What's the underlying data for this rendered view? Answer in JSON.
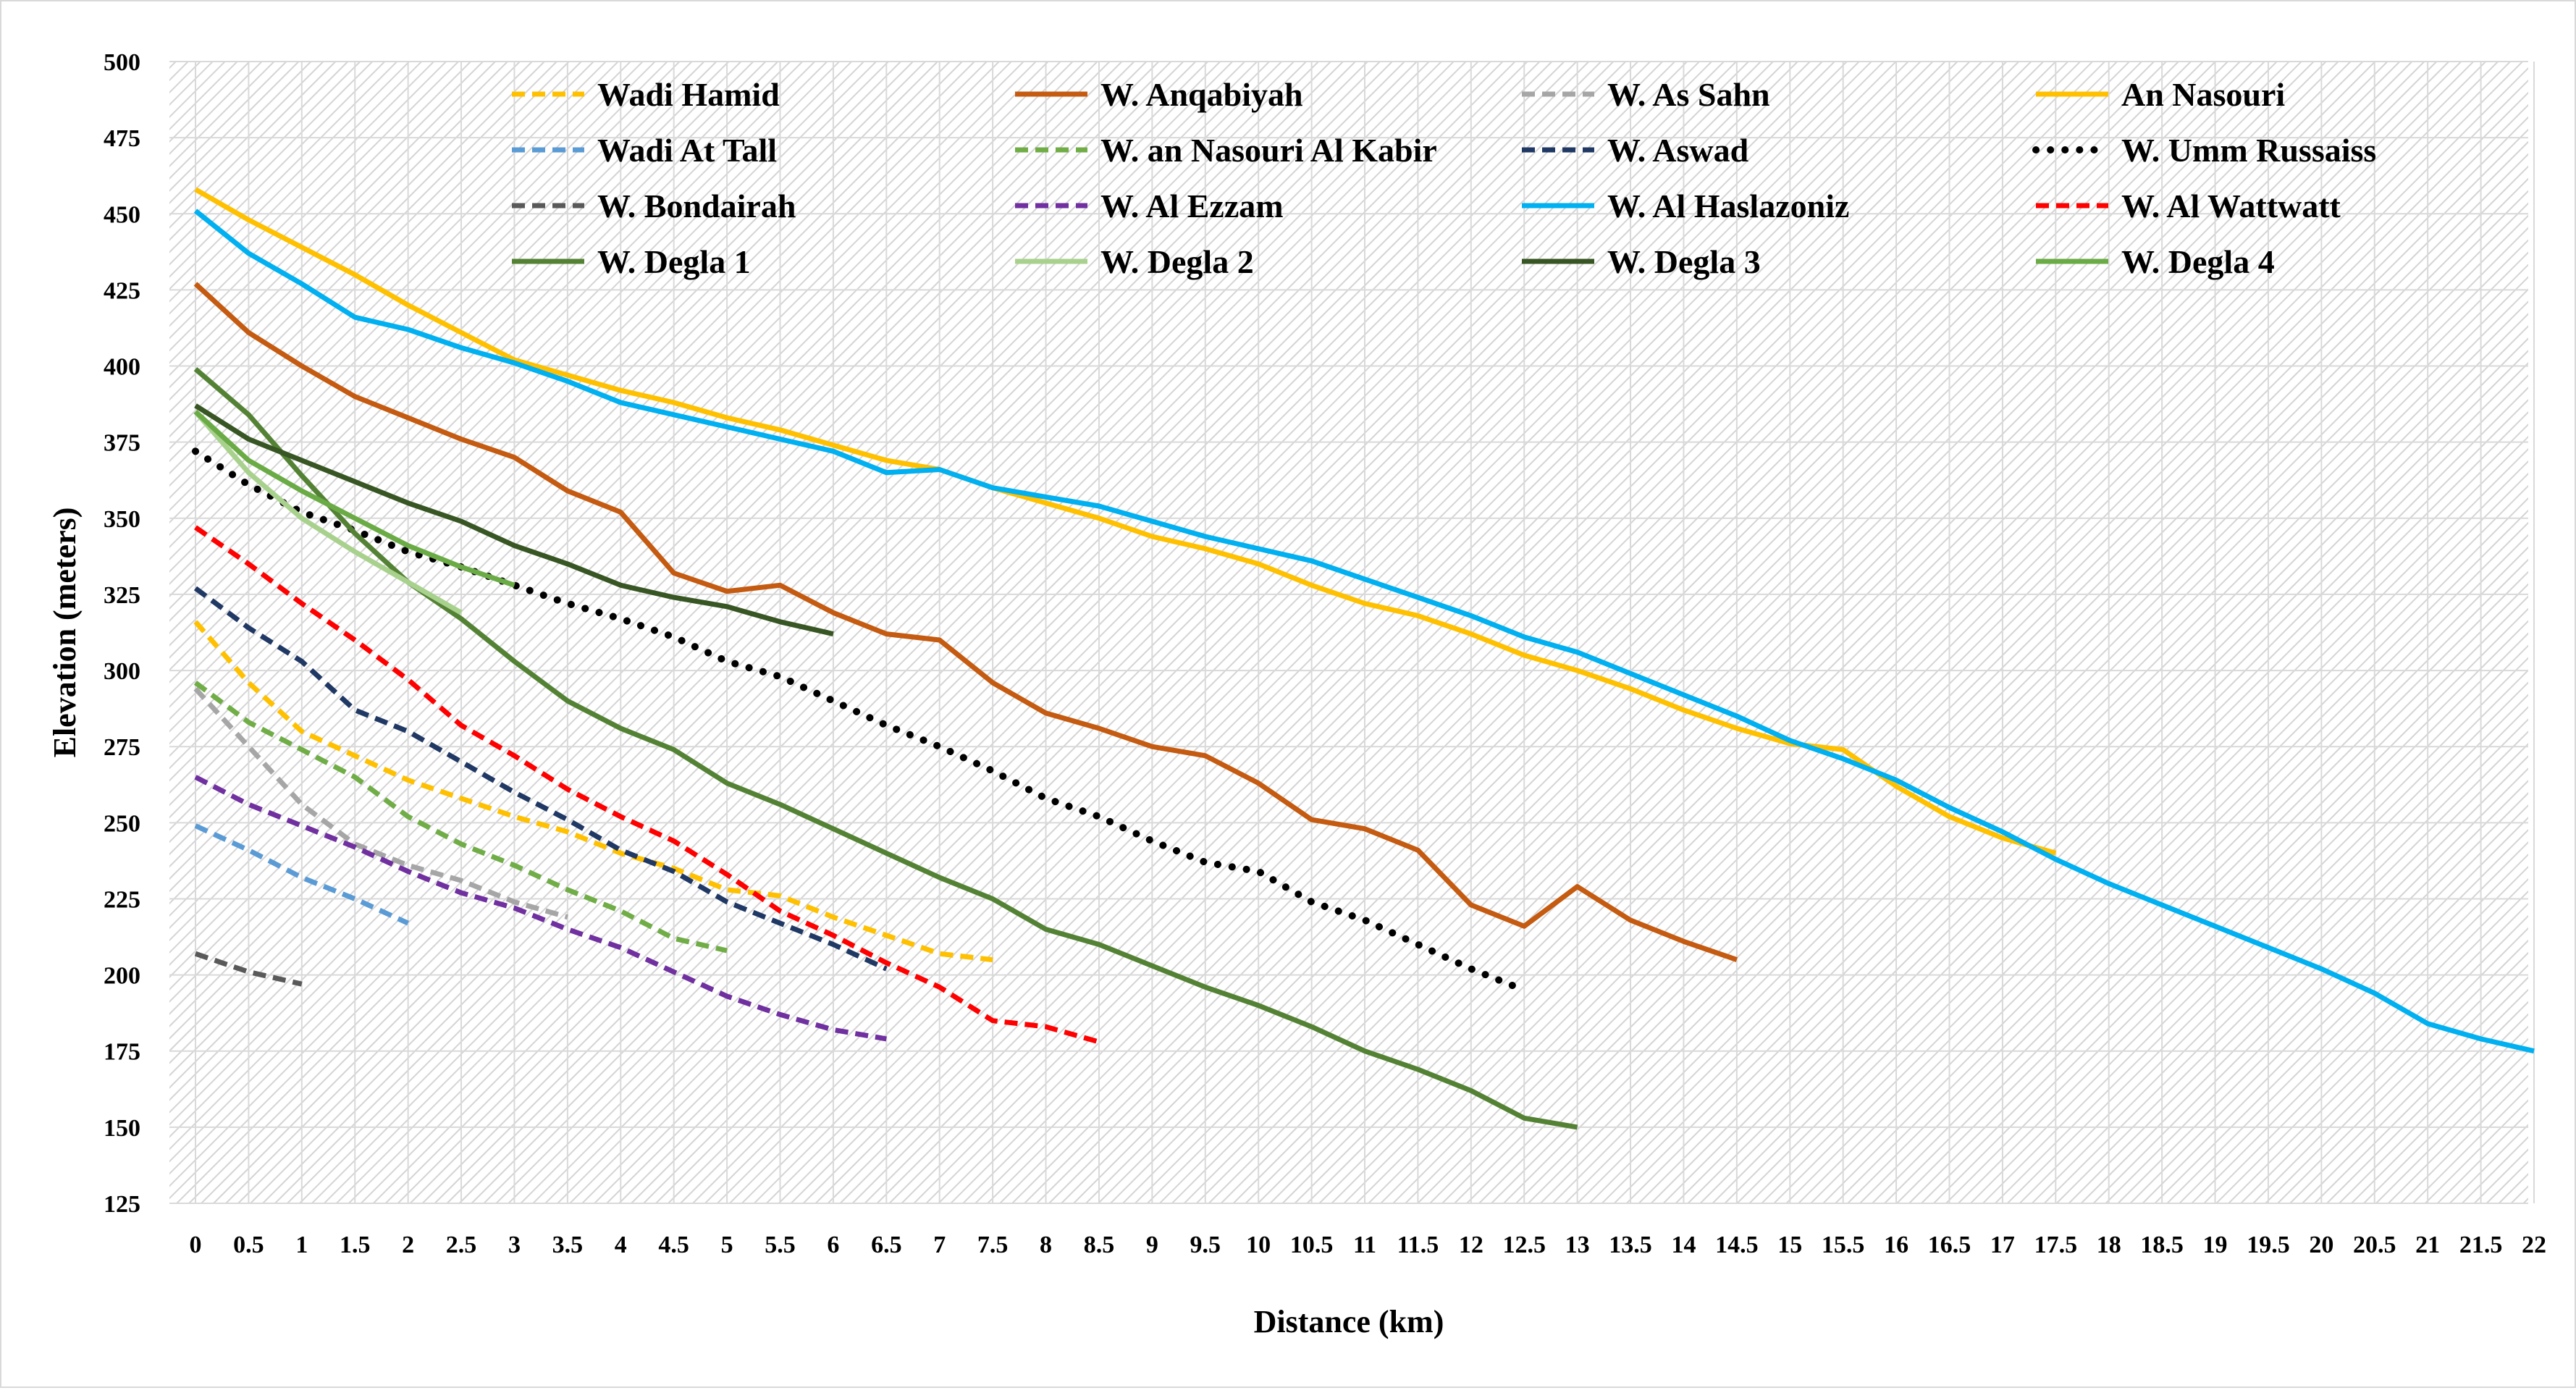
{
  "chart_data": {
    "type": "line",
    "title": "",
    "xlabel": "Distance (km)",
    "ylabel": "Elevation (meters)",
    "xlim": [
      0,
      22
    ],
    "ylim": [
      125,
      500
    ],
    "x_ticks": [
      "0",
      "0.5",
      "1",
      "1.5",
      "2",
      "2.5",
      "3",
      "3.5",
      "4",
      "4.5",
      "5",
      "5.5",
      "6",
      "6.5",
      "7",
      "7.5",
      "8",
      "8.5",
      "9",
      "9.5",
      "10",
      "10.5",
      "11",
      "11.5",
      "12",
      "12.5",
      "13",
      "13.5",
      "14",
      "14.5",
      "15",
      "15.5",
      "16",
      "16.5",
      "17",
      "17.5",
      "18",
      "18.5",
      "19",
      "19.5",
      "20",
      "20.5",
      "21",
      "21.5",
      "22"
    ],
    "y_ticks": [
      "125",
      "150",
      "175",
      "200",
      "225",
      "250",
      "275",
      "300",
      "325",
      "350",
      "375",
      "400",
      "425",
      "450",
      "475",
      "500"
    ],
    "grid": true,
    "legend_position": "top",
    "series": [
      {
        "name": "Wadi Hamid",
        "color": "#FFC000",
        "dash": "dashed",
        "x": [
          0,
          0.5,
          1,
          1.5,
          2,
          2.5,
          3,
          3.5,
          4,
          4.5,
          5,
          5.5,
          6,
          6.5,
          7,
          7.5
        ],
        "y": [
          316,
          296,
          280,
          272,
          264,
          258,
          252,
          247,
          240,
          235,
          228,
          226,
          219,
          213,
          207,
          205
        ]
      },
      {
        "name": "W. Anqabiyah",
        "color": "#C55A11",
        "dash": "solid",
        "x": [
          0,
          0.5,
          1,
          1.5,
          2,
          2.5,
          3,
          3.5,
          4,
          4.5,
          5,
          5.5,
          6,
          6.5,
          7,
          7.5,
          8,
          8.5,
          9,
          9.5,
          10,
          10.5,
          11,
          11.5,
          12,
          12.5,
          13,
          13.5,
          14,
          14.5
        ],
        "y": [
          427,
          411,
          400,
          390,
          383,
          376,
          370,
          359,
          352,
          332,
          326,
          328,
          319,
          312,
          310,
          296,
          286,
          281,
          275,
          272,
          263,
          251,
          248,
          241,
          223,
          216,
          229,
          218,
          211,
          205
        ]
      },
      {
        "name": "W. As Sahn",
        "color": "#A6A6A6",
        "dash": "dashed",
        "x": [
          0,
          0.5,
          1,
          1.5,
          2,
          2.5,
          3,
          3.5
        ],
        "y": [
          294,
          275,
          256,
          243,
          236,
          231,
          224,
          219
        ]
      },
      {
        "name": "An Nasouri",
        "color": "#FFC000",
        "dash": "solid",
        "x": [
          0,
          0.5,
          1,
          1.5,
          2,
          2.5,
          3,
          3.5,
          4,
          4.5,
          5,
          5.5,
          6,
          6.5,
          7,
          7.5,
          8,
          8.5,
          9,
          9.5,
          10,
          10.5,
          11,
          11.5,
          12,
          12.5,
          13,
          13.5,
          14,
          14.5,
          15,
          15.5,
          16,
          16.5,
          17,
          17.5
        ],
        "y": [
          458,
          448,
          439,
          430,
          420,
          411,
          402,
          397,
          392,
          388,
          383,
          379,
          374,
          369,
          366,
          360,
          355,
          350,
          344,
          340,
          335,
          328,
          322,
          318,
          312,
          305,
          300,
          294,
          287,
          281,
          276,
          274,
          262,
          252,
          245,
          240
        ]
      },
      {
        "name": "Wadi At Tall",
        "color": "#5B9BD5",
        "dash": "dashed",
        "x": [
          0,
          0.5,
          1,
          1.5,
          2
        ],
        "y": [
          249,
          241,
          232,
          225,
          217
        ]
      },
      {
        "name": "W. an Nasouri Al Kabir",
        "color": "#70AD47",
        "dash": "dashed",
        "x": [
          0,
          0.5,
          1,
          1.5,
          2,
          2.5,
          3,
          3.5,
          4,
          4.5,
          5
        ],
        "y": [
          296,
          283,
          274,
          265,
          252,
          243,
          236,
          228,
          221,
          212,
          208
        ]
      },
      {
        "name": "W. Aswad",
        "color": "#203864",
        "dash": "dashed",
        "x": [
          0,
          0.5,
          1,
          1.5,
          2,
          2.5,
          3,
          3.5,
          4,
          4.5,
          5,
          5.5,
          6,
          6.5
        ],
        "y": [
          327,
          314,
          303,
          287,
          280,
          270,
          260,
          251,
          241,
          234,
          224,
          217,
          210,
          202
        ]
      },
      {
        "name": "W. Umm Russaiss",
        "color": "#000000",
        "dash": "dotted",
        "x": [
          0,
          0.5,
          1,
          1.5,
          2,
          2.5,
          3,
          3.5,
          4,
          4.5,
          5,
          5.5,
          6,
          6.5,
          7,
          7.5,
          8,
          8.5,
          9,
          9.5,
          10,
          10.5,
          11,
          11.5,
          12,
          12.5
        ],
        "y": [
          372,
          361,
          352,
          346,
          339,
          334,
          328,
          322,
          317,
          311,
          303,
          298,
          290,
          282,
          275,
          267,
          258,
          252,
          244,
          237,
          234,
          224,
          218,
          210,
          202,
          195
        ]
      },
      {
        "name": "W. Bondairah",
        "color": "#595959",
        "dash": "dashed",
        "x": [
          0,
          0.5,
          1
        ],
        "y": [
          207,
          201,
          197
        ]
      },
      {
        "name": "W. Al Ezzam",
        "color": "#7030A0",
        "dash": "dashed",
        "x": [
          0,
          0.5,
          1,
          1.5,
          2,
          2.5,
          3,
          3.5,
          4,
          4.5,
          5,
          5.5,
          6,
          6.5
        ],
        "y": [
          265,
          256,
          249,
          242,
          234,
          227,
          222,
          215,
          209,
          201,
          193,
          187,
          182,
          179
        ]
      },
      {
        "name": "W. Al Haslazoniz",
        "color": "#00B0F0",
        "dash": "solid",
        "x": [
          0,
          0.5,
          1,
          1.5,
          2,
          2.5,
          3,
          3.5,
          4,
          4.5,
          5,
          5.5,
          6,
          6.5,
          7,
          7.5,
          8,
          8.5,
          9,
          9.5,
          10,
          10.5,
          11,
          11.5,
          12,
          12.5,
          13,
          13.5,
          14,
          14.5,
          15,
          15.5,
          16,
          16.5,
          17,
          17.5,
          18,
          18.5,
          19,
          19.5,
          20,
          20.5,
          21,
          21.5,
          22
        ],
        "y": [
          451,
          437,
          427,
          416,
          412,
          406,
          401,
          395,
          388,
          384,
          380,
          376,
          372,
          365,
          366,
          360,
          357,
          354,
          349,
          344,
          340,
          336,
          330,
          324,
          318,
          311,
          306,
          299,
          292,
          285,
          277,
          271,
          264,
          255,
          247,
          238,
          230,
          223,
          216,
          209,
          202,
          194,
          184,
          179,
          175
        ]
      },
      {
        "name": "W. Al Wattwatt",
        "color": "#FF0000",
        "dash": "dashed",
        "x": [
          0,
          0.5,
          1,
          1.5,
          2,
          2.5,
          3,
          3.5,
          4,
          4.5,
          5,
          5.5,
          6,
          6.5,
          7,
          7.5,
          8,
          8.5
        ],
        "y": [
          347,
          335,
          322,
          310,
          297,
          282,
          272,
          261,
          252,
          244,
          233,
          221,
          213,
          204,
          196,
          185,
          183,
          178
        ]
      },
      {
        "name": "W. Degla 1",
        "color": "#548235",
        "dash": "solid",
        "x": [
          0,
          0.5,
          1,
          1.5,
          2,
          2.5,
          3,
          3.5,
          4,
          4.5,
          5,
          5.5,
          6,
          6.5,
          7,
          7.5,
          8,
          8.5,
          9,
          9.5,
          10,
          10.5,
          11,
          11.5,
          12,
          12.5,
          13
        ],
        "y": [
          399,
          384,
          364,
          345,
          329,
          317,
          303,
          290,
          281,
          274,
          263,
          256,
          248,
          240,
          232,
          225,
          215,
          210,
          203,
          196,
          190,
          183,
          175,
          169,
          162,
          153,
          150
        ]
      },
      {
        "name": "W. Degla 2",
        "color": "#A9D18E",
        "dash": "solid",
        "x": [
          0,
          0.5,
          1,
          1.5,
          2,
          2.5
        ],
        "y": [
          385,
          365,
          350,
          339,
          329,
          319
        ]
      },
      {
        "name": "W. Degla 3",
        "color": "#375623",
        "dash": "solid",
        "x": [
          0,
          0.5,
          1,
          1.5,
          2,
          2.5,
          3,
          3.5,
          4,
          4.5,
          5,
          5.5,
          6
        ],
        "y": [
          387,
          376,
          369,
          362,
          355,
          349,
          341,
          335,
          328,
          324,
          321,
          316,
          312
        ]
      },
      {
        "name": "W. Degla 4",
        "color": "#6AAB46",
        "dash": "solid",
        "x": [
          0,
          0.5,
          1,
          1.5,
          2,
          2.5,
          3
        ],
        "y": [
          385,
          369,
          359,
          350,
          341,
          334,
          328
        ]
      }
    ]
  }
}
